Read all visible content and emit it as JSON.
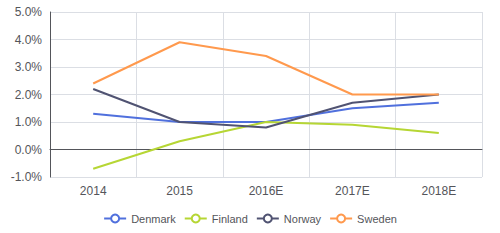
{
  "chart_data": {
    "type": "line",
    "categories": [
      "2014",
      "2015",
      "2016E",
      "2017E",
      "2018E"
    ],
    "series": [
      {
        "name": "Denmark",
        "values": [
          1.3,
          1.0,
          1.0,
          1.5,
          1.7
        ]
      },
      {
        "name": "Finland",
        "values": [
          -0.7,
          0.3,
          1.0,
          0.9,
          0.6
        ]
      },
      {
        "name": "Norway",
        "values": [
          2.2,
          1.0,
          0.8,
          1.7,
          2.0
        ]
      },
      {
        "name": "Sweden",
        "values": [
          2.4,
          3.9,
          3.4,
          2.0,
          2.0
        ]
      }
    ],
    "ylim": [
      -1.0,
      5.0
    ],
    "yticks": [
      {
        "value": -1.0,
        "label": "-1.0%"
      },
      {
        "value": 0.0,
        "label": "0.0%"
      },
      {
        "value": 1.0,
        "label": "1.0%"
      },
      {
        "value": 2.0,
        "label": "2.0%"
      },
      {
        "value": 3.0,
        "label": "3.0%"
      },
      {
        "value": 4.0,
        "label": "4.0%"
      },
      {
        "value": 5.0,
        "label": "5.0%"
      }
    ],
    "grid": true,
    "legend": "bottom"
  }
}
